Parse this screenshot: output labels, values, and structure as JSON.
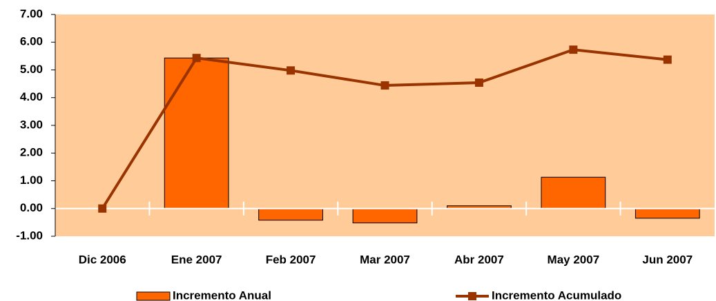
{
  "chart_data": {
    "type": "combo",
    "categories": [
      "Dic 2006",
      "Ene 2007",
      "Feb 2007",
      "Mar 2007",
      "Abr 2007",
      "May 2007",
      "Jun 2007"
    ],
    "series": [
      {
        "name": "Incremento Anual",
        "type": "bar",
        "color": "#ff6600",
        "values": [
          0,
          5.43,
          -0.42,
          -0.52,
          0.1,
          1.13,
          -0.35
        ]
      },
      {
        "name": "Incremento Acumulado",
        "type": "line",
        "color": "#993300",
        "values": [
          0,
          5.43,
          4.98,
          4.44,
          4.54,
          5.73,
          5.37
        ]
      }
    ],
    "ylim": [
      -1,
      7
    ],
    "yticks": [
      {
        "value": -1,
        "label": "-1.00"
      },
      {
        "value": 0,
        "label": "0.00"
      },
      {
        "value": 1,
        "label": "1.00"
      },
      {
        "value": 2,
        "label": "2.00"
      },
      {
        "value": 3,
        "label": "3.00"
      },
      {
        "value": 4,
        "label": "4.00"
      },
      {
        "value": 5,
        "label": "5.00"
      },
      {
        "value": 6,
        "label": "6.00"
      },
      {
        "value": 7,
        "label": "7.00"
      }
    ],
    "plot_background": "#ffcc99",
    "grid": false,
    "legend": "bottom"
  }
}
